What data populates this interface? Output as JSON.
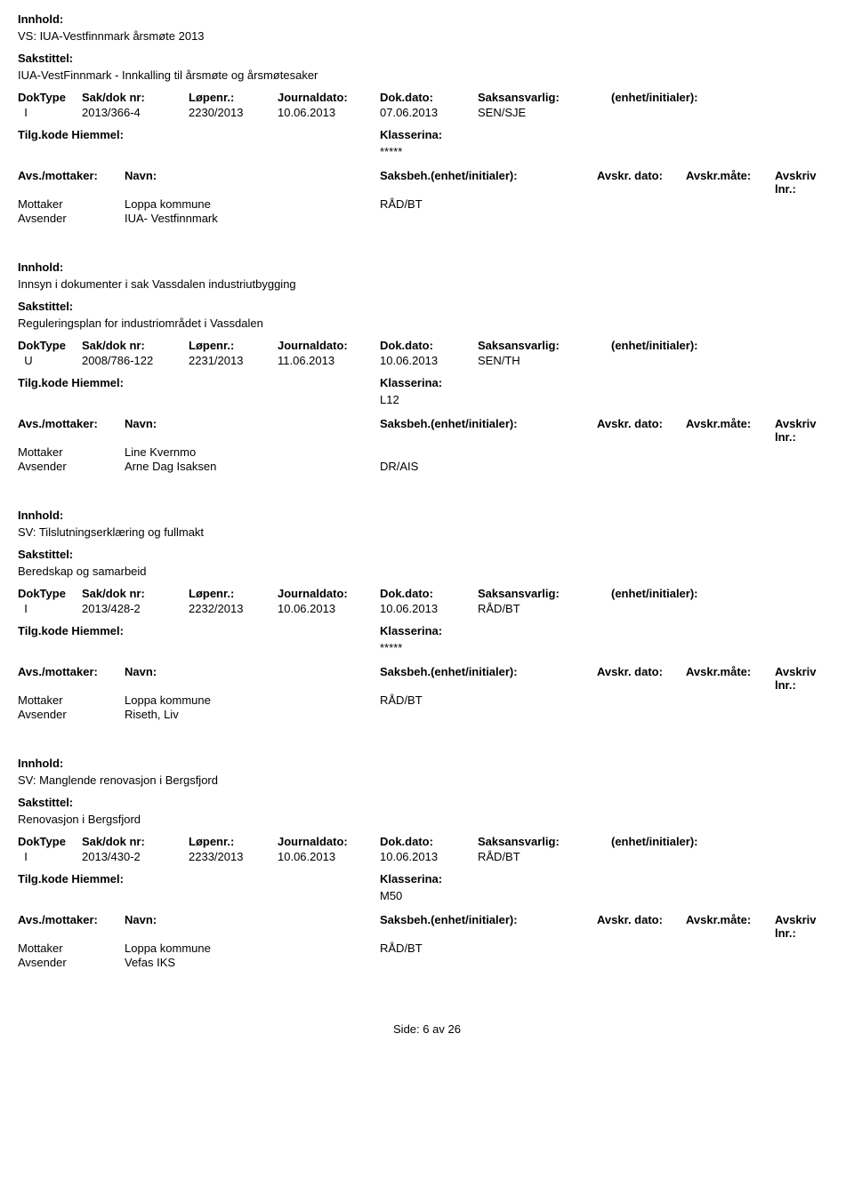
{
  "labels": {
    "innhold": "Innhold:",
    "sakstittel": "Sakstittel:",
    "doktype": "DokType",
    "saknr": "Sak/dok nr:",
    "lopenr": "Løpenr.:",
    "journaldato": "Journaldato:",
    "dokdato": "Dok.dato:",
    "saksansvarlig": "Saksansvarlig:",
    "enhet_initialer": "(enhet/initialer):",
    "tilgkode": "Tilg.kode",
    "hjemmel": "Hiemmel:",
    "klassering": "Klasserina:",
    "avs_mottaker": "Avs./mottaker:",
    "navn": "Navn:",
    "saksbeh_ei": "Saksbeh.(enhet/initialer):",
    "avskr_dato": "Avskr. dato:",
    "avskr_mate": "Avskr.måte:",
    "avskriv_lnr": "Avskriv lnr.:",
    "mottaker": "Mottaker",
    "avsender": "Avsender",
    "side": "Side:",
    "av": "av",
    "page_current": "6",
    "page_total": "26"
  },
  "records": [
    {
      "innhold": "VS: IUA-Vestfinnmark årsmøte 2013",
      "sakstittel": "IUA-VestFinnmark - Innkalling til årsmøte og årsmøtesaker",
      "doktype": "I",
      "saknr": "2013/366-4",
      "lopenr": "2230/2013",
      "journaldato": "10.06.2013",
      "dokdato": "07.06.2013",
      "saksansvarlig": "SEN/SJE",
      "enhet": "",
      "klassering": "*****",
      "parties": [
        {
          "role": "Mottaker",
          "name": "Loppa kommune",
          "saksbeh": "RÅD/BT"
        },
        {
          "role": "Avsender",
          "name": "IUA- Vestfinnmark",
          "saksbeh": ""
        }
      ]
    },
    {
      "innhold": "Innsyn i dokumenter i sak Vassdalen industriutbygging",
      "sakstittel": "Reguleringsplan for industriområdet i Vassdalen",
      "doktype": "U",
      "saknr": "2008/786-122",
      "lopenr": "2231/2013",
      "journaldato": "11.06.2013",
      "dokdato": "10.06.2013",
      "saksansvarlig": "SEN/TH",
      "enhet": "",
      "klassering": "L12",
      "parties": [
        {
          "role": "Mottaker",
          "name": "Line Kvernmo",
          "saksbeh": ""
        },
        {
          "role": "Avsender",
          "name": "Arne Dag Isaksen",
          "saksbeh": "DR/AIS"
        }
      ]
    },
    {
      "innhold": "SV: Tilslutningserklæring og fullmakt",
      "sakstittel": "Beredskap og samarbeid",
      "doktype": "I",
      "saknr": "2013/428-2",
      "lopenr": "2232/2013",
      "journaldato": "10.06.2013",
      "dokdato": "10.06.2013",
      "saksansvarlig": "RÅD/BT",
      "enhet": "",
      "klassering": "*****",
      "parties": [
        {
          "role": "Mottaker",
          "name": "Loppa kommune",
          "saksbeh": "RÅD/BT"
        },
        {
          "role": "Avsender",
          "name": "Riseth, Liv",
          "saksbeh": ""
        }
      ]
    },
    {
      "innhold": "SV: Manglende renovasjon i Bergsfjord",
      "sakstittel": "Renovasjon i Bergsfjord",
      "doktype": "I",
      "saknr": "2013/430-2",
      "lopenr": "2233/2013",
      "journaldato": "10.06.2013",
      "dokdato": "10.06.2013",
      "saksansvarlig": "RÅD/BT",
      "enhet": "",
      "klassering": "M50",
      "parties": [
        {
          "role": "Mottaker",
          "name": "Loppa kommune",
          "saksbeh": "RÅD/BT"
        },
        {
          "role": "Avsender",
          "name": "Vefas IKS",
          "saksbeh": ""
        }
      ]
    }
  ]
}
